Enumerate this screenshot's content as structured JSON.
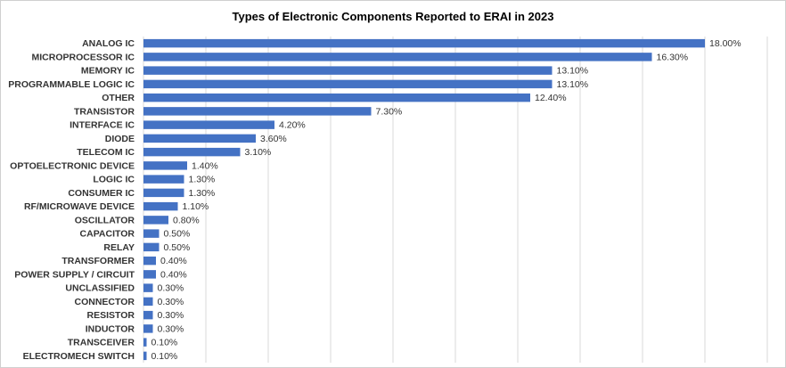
{
  "chart_data": {
    "type": "bar",
    "orientation": "horizontal",
    "title": "Types of Electronic Components Reported to ERAI in 2023",
    "categories": [
      "ANALOG IC",
      "MICROPROCESSOR IC",
      "MEMORY IC",
      "PROGRAMMABLE LOGIC IC",
      "OTHER",
      "TRANSISTOR",
      "INTERFACE IC",
      "DIODE",
      "TELECOM IC",
      "OPTOELECTRONIC DEVICE",
      "LOGIC IC",
      "CONSUMER IC",
      "RF/MICROWAVE DEVICE",
      "OSCILLATOR",
      "CAPACITOR",
      "RELAY",
      "TRANSFORMER",
      "POWER SUPPLY / CIRCUIT",
      "UNCLASSIFIED",
      "CONNECTOR",
      "RESISTOR",
      "INDUCTOR",
      "TRANSCEIVER",
      "ELECTROMECH SWITCH"
    ],
    "values": [
      18.0,
      16.3,
      13.1,
      13.1,
      12.4,
      7.3,
      4.2,
      3.6,
      3.1,
      1.4,
      1.3,
      1.3,
      1.1,
      0.8,
      0.5,
      0.5,
      0.4,
      0.4,
      0.3,
      0.3,
      0.3,
      0.3,
      0.1,
      0.1
    ],
    "value_labels": [
      "18.00%",
      "16.30%",
      "13.10%",
      "13.10%",
      "12.40%",
      "7.30%",
      "4.20%",
      "3.60%",
      "3.10%",
      "1.40%",
      "1.30%",
      "1.30%",
      "1.10%",
      "0.80%",
      "0.50%",
      "0.50%",
      "0.40%",
      "0.40%",
      "0.30%",
      "0.30%",
      "0.30%",
      "0.30%",
      "0.10%",
      "0.10%"
    ],
    "xlim": [
      0,
      20
    ],
    "grid_step": 2,
    "grid": true,
    "legend": false,
    "bar_color": "#4472c4"
  }
}
